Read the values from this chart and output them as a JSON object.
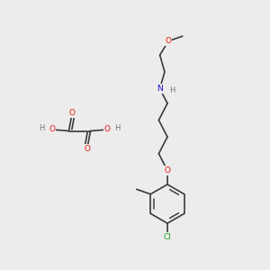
{
  "bg_color": "#ececec",
  "bond_color": "#3a3a3a",
  "bond_lw": 1.2,
  "atom_colors": {
    "O": "#ee1111",
    "N": "#1111cc",
    "Cl": "#22aa22",
    "H": "#777777"
  },
  "font_size": 6.5,
  "font_size_H": 6.0,
  "fig_size": [
    3.0,
    3.0
  ],
  "dpi": 100,
  "xlim": [
    0,
    10
  ],
  "ylim": [
    0,
    10
  ]
}
